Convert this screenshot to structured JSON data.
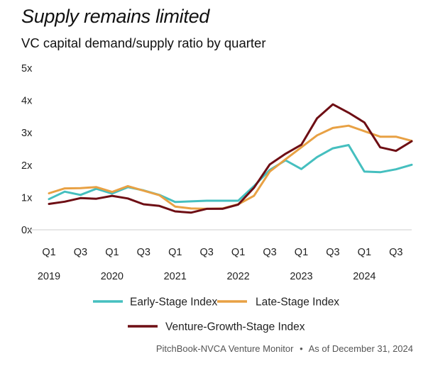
{
  "title": "Supply remains limited",
  "subtitle": "VC capital demand/supply ratio by quarter",
  "source": "PitchBook-NVCA Venture Monitor",
  "source_separator": "•",
  "source_date": "As of December 31, 2024",
  "chart_data": {
    "type": "line",
    "title": "Supply remains limited",
    "subtitle": "VC capital demand/supply ratio by quarter",
    "xlabel": "",
    "ylabel": "",
    "ylim": [
      0,
      5
    ],
    "y_ticks": [
      "0x",
      "1x",
      "2x",
      "3x",
      "4x",
      "5x"
    ],
    "y_tick_values": [
      0,
      1,
      2,
      3,
      4,
      5
    ],
    "x_tick_labels": [
      "Q1",
      "Q3",
      "Q1",
      "Q3",
      "Q1",
      "Q3",
      "Q1",
      "Q3",
      "Q1",
      "Q3",
      "Q1",
      "Q3"
    ],
    "x_tick_index": [
      0,
      2,
      4,
      6,
      8,
      10,
      12,
      14,
      16,
      18,
      20,
      22
    ],
    "year_labels": [
      "2019",
      "2020",
      "2021",
      "2022",
      "2023",
      "2024"
    ],
    "year_index": [
      0,
      4,
      8,
      12,
      16,
      20
    ],
    "x": [
      "2019 Q1",
      "2019 Q2",
      "2019 Q3",
      "2019 Q4",
      "2020 Q1",
      "2020 Q2",
      "2020 Q3",
      "2020 Q4",
      "2021 Q1",
      "2021 Q2",
      "2021 Q3",
      "2021 Q4",
      "2022 Q1",
      "2022 Q2",
      "2022 Q3",
      "2022 Q4",
      "2023 Q1",
      "2023 Q2",
      "2023 Q3",
      "2023 Q4",
      "2024 Q1",
      "2024 Q2",
      "2024 Q3",
      "2024 Q4"
    ],
    "grid": false,
    "legend_position": "bottom",
    "series": [
      {
        "name": "Early-Stage Index",
        "color": "#45BFBF",
        "values": [
          0.95,
          1.18,
          1.08,
          1.27,
          1.12,
          1.32,
          1.22,
          1.08,
          0.86,
          0.88,
          0.9,
          0.9,
          0.9,
          1.35,
          1.85,
          2.15,
          1.88,
          2.25,
          2.52,
          2.62,
          1.8,
          1.78,
          1.87,
          2.01
        ]
      },
      {
        "name": "Late-Stage Index",
        "color": "#E8A144",
        "values": [
          1.13,
          1.28,
          1.29,
          1.32,
          1.17,
          1.35,
          1.21,
          1.07,
          0.72,
          0.66,
          0.65,
          0.66,
          0.79,
          1.05,
          1.8,
          2.18,
          2.55,
          2.92,
          3.15,
          3.22,
          3.05,
          2.88,
          2.88,
          2.75
        ]
      },
      {
        "name": "Venture-Growth-Stage Index",
        "color": "#6E0E14",
        "values": [
          0.8,
          0.87,
          0.98,
          0.96,
          1.05,
          0.97,
          0.79,
          0.74,
          0.57,
          0.53,
          0.65,
          0.65,
          0.78,
          1.3,
          2.02,
          2.35,
          2.63,
          3.45,
          3.88,
          3.62,
          3.32,
          2.55,
          2.44,
          2.74
        ]
      }
    ]
  }
}
